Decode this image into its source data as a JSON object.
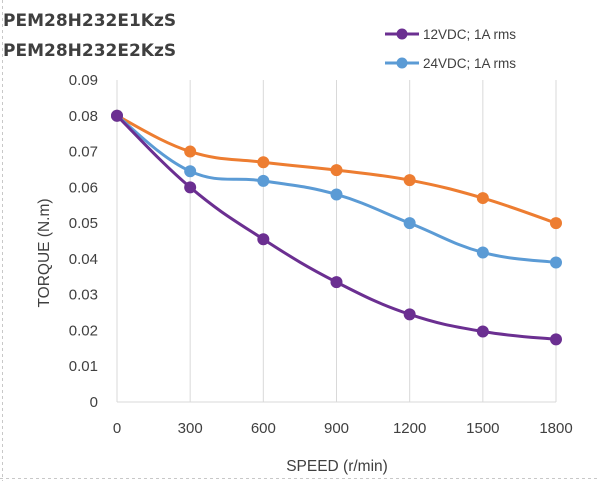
{
  "chart_data": {
    "type": "line",
    "title_lines": [
      "PEM28H232E1KzS",
      "PEM28H232E2KzS"
    ],
    "xlabel": "SPEED (r/min)",
    "ylabel": "TORQUE (N.m)",
    "x": [
      0,
      300,
      600,
      900,
      1200,
      1500,
      1800
    ],
    "x_tick_labels": [
      "0",
      "300",
      "600",
      "900",
      "1200",
      "1500",
      "1800"
    ],
    "xlim": [
      0,
      1800
    ],
    "ylim": [
      0,
      0.09
    ],
    "y_ticks": [
      0,
      0.01,
      0.02,
      0.03,
      0.04,
      0.05,
      0.06,
      0.07,
      0.08,
      0.09
    ],
    "y_tick_labels": [
      "0",
      "0.01",
      "0.02",
      "0.03",
      "0.04",
      "0.05",
      "0.06",
      "0.07",
      "0.08",
      "0.09"
    ],
    "grid": "vertical",
    "legend_position": "top-right",
    "series": [
      {
        "name": "12VDC; 1A rms",
        "color": "#6b2f91",
        "values": [
          0.08,
          0.06,
          0.0455,
          0.0335,
          0.0245,
          0.0197,
          0.0175
        ]
      },
      {
        "name": "24VDC; 1A rms",
        "color": "#5b9bd5",
        "values": [
          0.08,
          0.0645,
          0.0618,
          0.058,
          0.05,
          0.0418,
          0.039
        ]
      },
      {
        "name": "",
        "color": "#ed7d31",
        "values": [
          0.08,
          0.07,
          0.067,
          0.0648,
          0.062,
          0.057,
          0.05
        ]
      }
    ]
  }
}
